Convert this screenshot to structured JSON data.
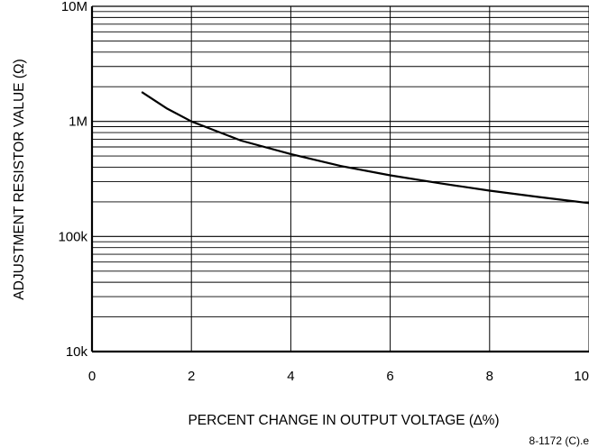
{
  "chart_data": {
    "type": "line",
    "title": "",
    "xlabel": "PERCENT CHANGE IN OUTPUT VOLTAGE (∆%)",
    "ylabel": "ADJUSTMENT RESISTOR VALUE (Ω)",
    "xlim": [
      0,
      10
    ],
    "ylim": [
      10000,
      10000000
    ],
    "yscale": "log",
    "grid": true,
    "x_ticks": [
      0,
      2,
      4,
      6,
      8,
      10
    ],
    "x_tick_labels": [
      "0",
      "2",
      "4",
      "6",
      "8",
      "10"
    ],
    "y_ticks": [
      10000,
      100000,
      1000000,
      10000000
    ],
    "y_tick_labels": [
      "10k",
      "100k",
      "1M",
      "10M"
    ],
    "series": [
      {
        "x": [
          1.0,
          1.5,
          2.0,
          3.0,
          4.0,
          5.0,
          6.0,
          7.0,
          8.0,
          9.0,
          10.0
        ],
        "y": [
          1800000,
          1300000,
          1000000,
          680000,
          520000,
          410000,
          340000,
          290000,
          250000,
          220000,
          195000
        ]
      }
    ],
    "footnote": "8-1172 (C).e"
  }
}
